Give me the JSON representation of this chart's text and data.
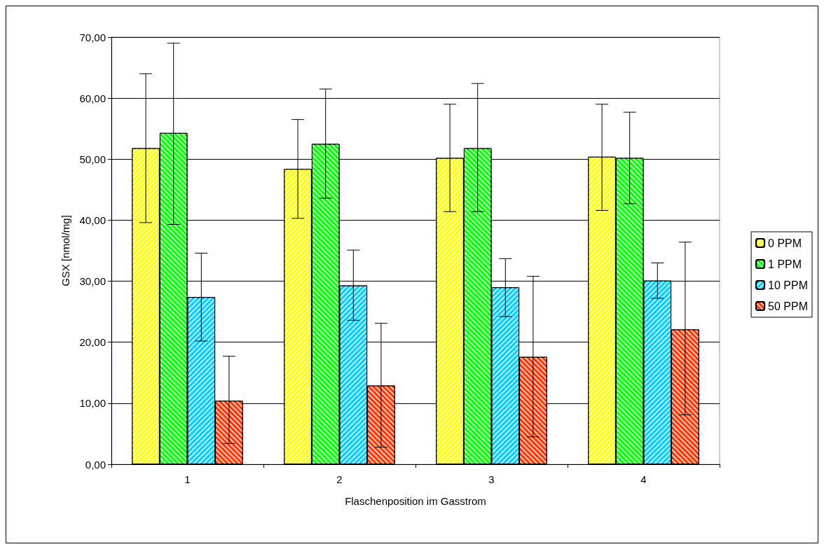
{
  "chart_data": {
    "type": "bar",
    "xlabel": "Flaschenposition im Gasstrom",
    "ylabel": "GSX [nmol/mg]",
    "categories": [
      "1",
      "2",
      "3",
      "4"
    ],
    "series": [
      {
        "name": "0 PPM",
        "color": "#ffff00",
        "values": [
          51.8,
          48.4,
          50.2,
          50.4
        ],
        "errors": [
          [
            39.6,
            64.0
          ],
          [
            40.3,
            56.5
          ],
          [
            41.4,
            59.0
          ],
          [
            41.6,
            59.0
          ]
        ]
      },
      {
        "name": "1 PPM",
        "color": "#00ff00",
        "values": [
          54.3,
          52.5,
          51.8,
          50.2
        ],
        "errors": [
          [
            39.3,
            69.0
          ],
          [
            43.6,
            61.5
          ],
          [
            41.4,
            62.4
          ],
          [
            42.7,
            57.7
          ]
        ]
      },
      {
        "name": "10 PPM",
        "color": "#00ccff",
        "values": [
          27.4,
          29.3,
          29.0,
          30.1
        ],
        "errors": [
          [
            20.2,
            34.6
          ],
          [
            23.6,
            35.1
          ],
          [
            24.2,
            33.7
          ],
          [
            27.2,
            33.0
          ]
        ]
      },
      {
        "name": "50 PPM",
        "color": "#ff3300",
        "values": [
          10.4,
          12.9,
          17.6,
          22.1
        ],
        "errors": [
          [
            3.4,
            17.7
          ],
          [
            2.8,
            23.1
          ],
          [
            4.5,
            30.8
          ],
          [
            8.1,
            36.4
          ]
        ]
      }
    ],
    "ylim": [
      0,
      70
    ],
    "yticks": [
      {
        "value": 0,
        "label": "0,00"
      },
      {
        "value": 10,
        "label": "10,00"
      },
      {
        "value": 20,
        "label": "20,00"
      },
      {
        "value": 30,
        "label": "30,00"
      },
      {
        "value": 40,
        "label": "40,00"
      },
      {
        "value": 50,
        "label": "50,00"
      },
      {
        "value": 60,
        "label": "60,00"
      },
      {
        "value": 70,
        "label": "70,00"
      }
    ],
    "grid": "y",
    "legend": "right"
  }
}
